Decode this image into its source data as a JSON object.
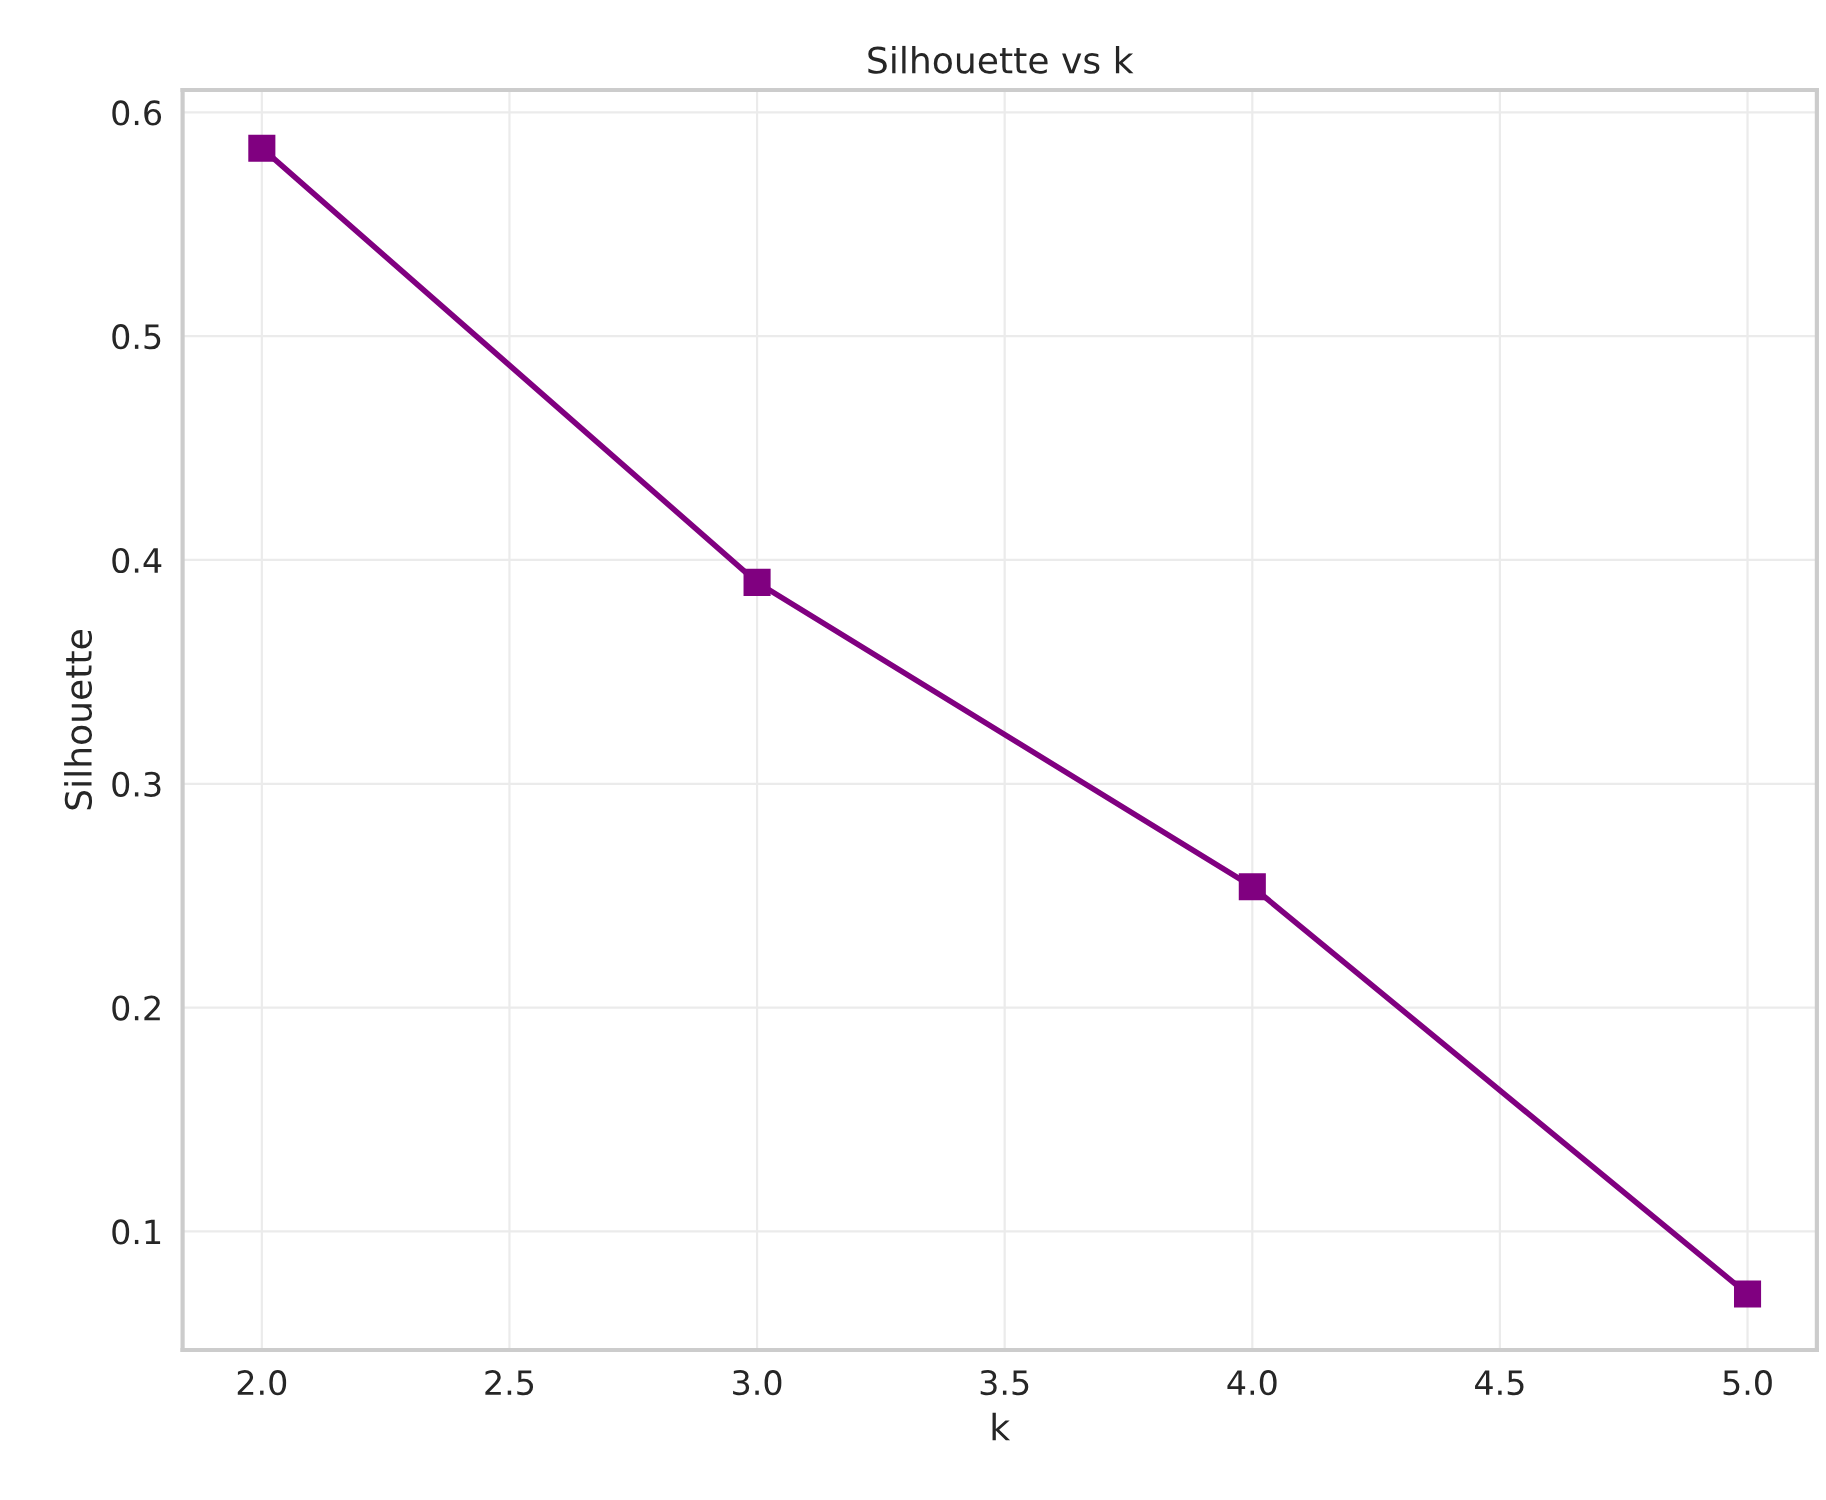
{
  "chart_data": {
    "type": "line",
    "title": "Silhouette vs k",
    "xlabel": "k",
    "ylabel": "Silhouette",
    "x": [
      2.0,
      3.0,
      4.0,
      5.0
    ],
    "series": [
      {
        "color": "#800080",
        "values": [
          0.584,
          0.39,
          0.254,
          0.072
        ]
      }
    ],
    "xlim": [
      1.84,
      5.14
    ],
    "xticks": [
      {
        "value": 2.0,
        "label": "2.0"
      },
      {
        "value": 2.5,
        "label": "2.5"
      },
      {
        "value": 3.0,
        "label": "3.0"
      },
      {
        "value": 3.5,
        "label": "3.5"
      },
      {
        "value": 4.0,
        "label": "4.0"
      },
      {
        "value": 4.5,
        "label": "4.5"
      },
      {
        "value": 5.0,
        "label": "5.0"
      }
    ],
    "ylim": [
      0.047,
      0.61
    ],
    "yticks": [
      0.1,
      0.2,
      0.3,
      0.4,
      0.5,
      0.6
    ],
    "grid": true,
    "marker": "square",
    "line_style": "solid"
  }
}
